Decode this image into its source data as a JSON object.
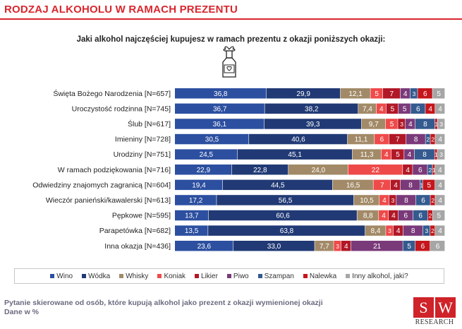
{
  "header": {
    "title": "RODZAJ ALKOHOLU W RAMACH PREZENTU"
  },
  "chart_data": {
    "type": "stacked-bar-horizontal",
    "title": "Jaki alkohol najczęściej kupujesz w ramach prezentu z okazji poniższych okazji:",
    "unit": "%",
    "series": [
      {
        "name": "Wino",
        "color": "#2c4fa0"
      },
      {
        "name": "Wódka",
        "color": "#213a75"
      },
      {
        "name": "Whisky",
        "color": "#a28a68"
      },
      {
        "name": "Koniak",
        "color": "#ef4a4a"
      },
      {
        "name": "Likier",
        "color": "#b11827"
      },
      {
        "name": "Piwo",
        "color": "#7a3a7a"
      },
      {
        "name": "Szampan",
        "color": "#345a8f"
      },
      {
        "name": "Nalewka",
        "color": "#c4161c"
      },
      {
        "name": "Inny alkohol, jaki?",
        "color": "#a6a6a6"
      }
    ],
    "rows": [
      {
        "label": "Święta Bożego Narodzenia [N=657]",
        "values": [
          36.8,
          29.9,
          12.1,
          5,
          7,
          4,
          3,
          6,
          5
        ],
        "labels": [
          "36,8",
          "29,9",
          "12,1",
          "5",
          "7",
          "4",
          "3",
          "6",
          "5"
        ]
      },
      {
        "label": "Uroczystość rodzinna [N=745]",
        "values": [
          36.7,
          38.2,
          7.4,
          4,
          5,
          5,
          6,
          4,
          4
        ],
        "labels": [
          "36,7",
          "38,2",
          "7,4",
          "4",
          "5",
          "5",
          "6",
          "4",
          "4"
        ]
      },
      {
        "label": "Ślub [N=617]",
        "values": [
          36.1,
          39.3,
          9.7,
          5,
          3,
          4,
          8,
          1,
          3
        ],
        "labels": [
          "36,1",
          "39,3",
          "9,7",
          "5",
          "3",
          "4",
          "8",
          "1",
          "3"
        ]
      },
      {
        "label": "Imieniny [N=728]",
        "values": [
          30.5,
          40.6,
          11.1,
          6,
          7,
          8,
          2,
          2,
          4
        ],
        "labels": [
          "30,5",
          "40,6",
          "11,1",
          "6",
          "7",
          "8",
          "2",
          "2",
          "4"
        ]
      },
      {
        "label": "Urodziny [N=751]",
        "values": [
          24.5,
          45.1,
          11.3,
          4,
          5,
          4,
          8,
          1,
          3
        ],
        "labels": [
          "24,5",
          "45,1",
          "11,3",
          "4",
          "5",
          "4",
          "8",
          "1",
          "3"
        ]
      },
      {
        "label": "W ramach podziękowania [N=716]",
        "values": [
          22.9,
          22.8,
          24.0,
          22,
          4,
          6,
          2,
          1,
          4
        ],
        "labels": [
          "22,9",
          "22,8",
          "24,0",
          "22",
          "4",
          "6",
          "2",
          "1",
          "4"
        ]
      },
      {
        "label": "Odwiedziny znajomych zagranicą [N=604]",
        "values": [
          19.4,
          44.5,
          16.5,
          7,
          4,
          8,
          1,
          5,
          4
        ],
        "labels": [
          "19,4",
          "44,5",
          "16,5",
          "7",
          "4",
          "8",
          "1",
          "5",
          "4"
        ]
      },
      {
        "label": "Wieczór panieński/kawalerski [N=613]",
        "values": [
          17.2,
          56.5,
          10.5,
          4,
          3,
          8,
          6,
          2,
          4
        ],
        "labels": [
          "17,2",
          "56,5",
          "10,5",
          "4",
          "3",
          "8",
          "6",
          "2",
          "4"
        ]
      },
      {
        "label": "Pępkowe [N=595]",
        "values": [
          13.7,
          60.6,
          8.8,
          4,
          4,
          6,
          6,
          2,
          5
        ],
        "labels": [
          "13,7",
          "60,6",
          "8,8",
          "4",
          "4",
          "6",
          "6",
          "2",
          "5"
        ]
      },
      {
        "label": "Parapetówka [N=682]",
        "values": [
          13.5,
          63.8,
          8.4,
          3,
          4,
          8,
          3,
          2,
          4
        ],
        "labels": [
          "13,5",
          "63,8",
          "8,4",
          "3",
          "4",
          "8",
          "3",
          "2",
          "4"
        ]
      },
      {
        "label": "Inna okazja [N=436]",
        "values": [
          23.6,
          33.0,
          7.7,
          3,
          4,
          21,
          5,
          6,
          6
        ],
        "labels": [
          "23,6",
          "33,0",
          "7,7",
          "3",
          "4",
          "21",
          "5",
          "6",
          "6"
        ]
      }
    ]
  },
  "footnote": {
    "line1": "Pytanie skierowane od osób, które kupują alkohol jako prezent z okazji wymienionej okazji",
    "line2": "Dane w %"
  },
  "logo": {
    "left": "S",
    "right": "W",
    "text": "RESEARCH"
  }
}
